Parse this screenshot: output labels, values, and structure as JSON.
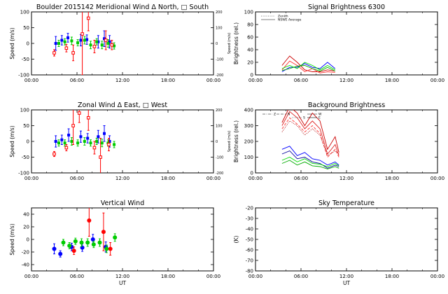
{
  "chart_data": [
    {
      "id": "meridional",
      "type": "scatter",
      "title": "Boulder   2015142     Meridional Wind   Δ North, □ South",
      "ylabel": "Speed (m/s)",
      "ylabel_right": "Speed (m/s)",
      "xlabel": "",
      "xlim": [
        0,
        24
      ],
      "ylim": [
        -100,
        100
      ],
      "yticks": [
        -100,
        -50,
        0,
        50,
        100
      ],
      "ylim_right": [
        -200,
        200
      ],
      "yticks_right": [
        -200,
        -100,
        0,
        100,
        200
      ],
      "xticks": [
        "00:00",
        "06:00",
        "12:00",
        "18:00",
        "00:00"
      ],
      "grid": false,
      "series": [
        {
          "color": "#0000ff",
          "marker": "square",
          "points": [
            [
              3.2,
              0,
              22
            ],
            [
              4.0,
              10,
              15
            ],
            [
              4.8,
              18,
              14
            ],
            [
              6.5,
              10,
              18
            ],
            [
              7.3,
              12,
              15
            ],
            [
              8.8,
              5,
              20
            ],
            [
              9.6,
              15,
              25
            ],
            [
              10.3,
              5,
              20
            ]
          ]
        },
        {
          "color": "#00cc00",
          "marker": "square",
          "points": [
            [
              3.6,
              0,
              10
            ],
            [
              4.4,
              5,
              10
            ],
            [
              5.3,
              8,
              12
            ],
            [
              6.1,
              2,
              10
            ],
            [
              7.0,
              10,
              12
            ],
            [
              7.8,
              -5,
              12
            ],
            [
              8.6,
              5,
              10
            ],
            [
              9.3,
              -5,
              12
            ],
            [
              10.1,
              0,
              12
            ],
            [
              10.9,
              -8,
              10
            ]
          ]
        },
        {
          "color": "#ff0000",
          "marker": "square-open",
          "points": [
            [
              3.0,
              -30,
              10
            ],
            [
              4.6,
              -15,
              12
            ],
            [
              5.5,
              -30,
              25
            ],
            [
              6.7,
              30,
              130
            ],
            [
              7.5,
              80,
              40
            ],
            [
              8.3,
              -10,
              20
            ],
            [
              9.8,
              10,
              30
            ],
            [
              10.6,
              -5,
              15
            ]
          ]
        }
      ]
    },
    {
      "id": "zonal",
      "type": "scatter",
      "title": "Zonal Wind      Δ East, □ West",
      "ylabel": "Speed (m/s)",
      "ylabel_right": "Speed (m/s)",
      "xlabel": "",
      "xlim": [
        0,
        24
      ],
      "ylim": [
        -100,
        100
      ],
      "yticks": [
        -100,
        -50,
        0,
        50,
        100
      ],
      "ylim_right": [
        -200,
        200
      ],
      "yticks_right": [
        -200,
        -100,
        0,
        100,
        200
      ],
      "xticks": [
        "00:00",
        "06:00",
        "12:00",
        "18:00",
        "00:00"
      ],
      "grid": false,
      "series": [
        {
          "color": "#0000ff",
          "marker": "square",
          "points": [
            [
              3.2,
              0,
              18
            ],
            [
              4.0,
              5,
              15
            ],
            [
              4.9,
              20,
              20
            ],
            [
              6.5,
              15,
              18
            ],
            [
              7.4,
              10,
              15
            ],
            [
              8.8,
              15,
              20
            ],
            [
              9.6,
              25,
              25
            ],
            [
              10.3,
              0,
              18
            ]
          ]
        },
        {
          "color": "#00cc00",
          "marker": "square",
          "points": [
            [
              3.6,
              -5,
              10
            ],
            [
              4.4,
              -5,
              10
            ],
            [
              5.3,
              0,
              12
            ],
            [
              6.1,
              -5,
              10
            ],
            [
              7.0,
              0,
              12
            ],
            [
              7.8,
              -5,
              10
            ],
            [
              8.6,
              0,
              10
            ],
            [
              9.3,
              -5,
              12
            ],
            [
              10.1,
              -5,
              10
            ],
            [
              10.9,
              -10,
              10
            ]
          ]
        },
        {
          "color": "#ff0000",
          "marker": "square-open",
          "points": [
            [
              3.0,
              -40,
              8
            ],
            [
              4.6,
              -20,
              10
            ],
            [
              5.5,
              50,
              60
            ],
            [
              6.3,
              90,
              30
            ],
            [
              7.5,
              75,
              40
            ],
            [
              8.3,
              -20,
              20
            ],
            [
              9.1,
              -50,
              60
            ],
            [
              10.2,
              -10,
              20
            ]
          ]
        }
      ]
    },
    {
      "id": "vertical",
      "type": "scatter",
      "title": "Vertical Wind",
      "ylabel": "Speed (m/s)",
      "xlabel": "UT",
      "xlim": [
        0,
        24
      ],
      "ylim": [
        -50,
        50
      ],
      "yticks": [
        -40,
        -20,
        0,
        20,
        40
      ],
      "xticks": [
        "00:00",
        "06:00",
        "12:00",
        "18:00",
        "00:00"
      ],
      "grid": false,
      "series": [
        {
          "color": "#0000ff",
          "marker": "circle",
          "points": [
            [
              3.0,
              -15,
              8
            ],
            [
              3.8,
              -23,
              5
            ],
            [
              5.3,
              -12,
              6
            ],
            [
              6.7,
              -13,
              6
            ],
            [
              8.1,
              0,
              8
            ],
            [
              9.8,
              -12,
              8
            ]
          ]
        },
        {
          "color": "#00cc00",
          "marker": "circle",
          "points": [
            [
              4.2,
              -5,
              5
            ],
            [
              5.0,
              -10,
              5
            ],
            [
              5.8,
              -3,
              5
            ],
            [
              6.6,
              -5,
              6
            ],
            [
              7.4,
              -5,
              6
            ],
            [
              8.2,
              -8,
              5
            ],
            [
              9.0,
              -5,
              6
            ],
            [
              9.9,
              -15,
              6
            ],
            [
              11.0,
              3,
              6
            ]
          ]
        },
        {
          "color": "#ff0000",
          "marker": "circle",
          "points": [
            [
              5.6,
              -18,
              6
            ],
            [
              7.6,
              30,
              25
            ],
            [
              9.5,
              12,
              30
            ],
            [
              10.4,
              -15,
              10
            ]
          ]
        }
      ]
    },
    {
      "id": "signal",
      "type": "line",
      "title": "Signal Brightness        6300",
      "ylabel": "Brightness (rel.)",
      "xlabel": "",
      "xlim": [
        0,
        24
      ],
      "ylim": [
        0,
        100
      ],
      "yticks": [
        0,
        20,
        40,
        60,
        80,
        100
      ],
      "xticks": [
        "00:00",
        "06:00",
        "12:00",
        "18:00",
        "00:00"
      ],
      "legend": {
        "placement": "top-left",
        "entries": [
          {
            "label": "Zenith",
            "style": "dotted"
          },
          {
            "label": "NSWE Average",
            "style": "solid"
          }
        ]
      },
      "series": [
        {
          "color": "#cc0000",
          "style": "solid",
          "points": [
            [
              3.5,
              15
            ],
            [
              4.5,
              30
            ],
            [
              5.5,
              20
            ],
            [
              6.5,
              8
            ],
            [
              7.5,
              5
            ],
            [
              8.5,
              5
            ],
            [
              9.5,
              8
            ],
            [
              10.5,
              6
            ]
          ]
        },
        {
          "color": "#ff3333",
          "style": "solid",
          "points": [
            [
              3.5,
              8
            ],
            [
              4.5,
              22
            ],
            [
              5.5,
              15
            ],
            [
              6.5,
              5
            ],
            [
              7.5,
              10
            ],
            [
              8.5,
              3
            ],
            [
              9.5,
              5
            ],
            [
              10.5,
              4
            ]
          ]
        },
        {
          "color": "#0000ff",
          "style": "solid",
          "points": [
            [
              3.5,
              5
            ],
            [
              4.5,
              12
            ],
            [
              5.5,
              12
            ],
            [
              6.5,
              18
            ],
            [
              7.5,
              12
            ],
            [
              8.5,
              10
            ],
            [
              9.5,
              20
            ],
            [
              10.5,
              10
            ]
          ]
        },
        {
          "color": "#00dd00",
          "style": "solid",
          "points": [
            [
              3.5,
              10
            ],
            [
              4.5,
              15
            ],
            [
              5.5,
              10
            ],
            [
              6.5,
              20
            ],
            [
              7.5,
              15
            ],
            [
              8.5,
              8
            ],
            [
              9.5,
              15
            ],
            [
              10.5,
              8
            ]
          ]
        },
        {
          "color": "#00aa00",
          "style": "solid",
          "points": [
            [
              3.5,
              7
            ],
            [
              4.5,
              10
            ],
            [
              5.5,
              14
            ],
            [
              6.5,
              15
            ],
            [
              7.5,
              10
            ],
            [
              8.5,
              6
            ],
            [
              9.5,
              12
            ],
            [
              10.5,
              6
            ]
          ]
        }
      ]
    },
    {
      "id": "background",
      "type": "line",
      "title": "Background Brightness",
      "ylabel": "Brightness (rel.)",
      "xlabel": "",
      "xlim": [
        0,
        24
      ],
      "ylim": [
        0,
        400
      ],
      "yticks": [
        0,
        100,
        200,
        300,
        400
      ],
      "xticks": [
        "00:00",
        "06:00",
        "12:00",
        "18:00",
        "00:00"
      ],
      "legend": {
        "placement": "top-left",
        "entries": [
          {
            "label": "Z",
            "style": "dash-dot"
          },
          {
            "label": "N",
            "style": "dashed"
          },
          {
            "label": "S",
            "style": "dotted"
          },
          {
            "label": "W",
            "style": "long-dash"
          },
          {
            "label": "E",
            "style": "solid"
          }
        ]
      },
      "series": [
        {
          "color": "#cc0000",
          "style": "solid",
          "points": [
            [
              3.5,
              320
            ],
            [
              4.5,
              420
            ],
            [
              5.5,
              380
            ],
            [
              6.5,
              300
            ],
            [
              7.5,
              380
            ],
            [
              8.5,
              330
            ],
            [
              9.5,
              150
            ],
            [
              10.5,
              230
            ],
            [
              11.0,
              130
            ]
          ]
        },
        {
          "color": "#dd2222",
          "style": "solid",
          "points": [
            [
              3.5,
              300
            ],
            [
              4.5,
              390
            ],
            [
              5.5,
              350
            ],
            [
              6.5,
              280
            ],
            [
              7.5,
              330
            ],
            [
              8.5,
              280
            ],
            [
              9.5,
              120
            ],
            [
              10.5,
              180
            ],
            [
              11.0,
              110
            ]
          ]
        },
        {
          "color": "#ff3333",
          "style": "dashed",
          "points": [
            [
              3.5,
              280
            ],
            [
              4.5,
              350
            ],
            [
              5.5,
              310
            ],
            [
              6.5,
              260
            ],
            [
              7.5,
              300
            ],
            [
              8.5,
              250
            ],
            [
              9.5,
              100
            ],
            [
              10.5,
              150
            ],
            [
              11.0,
              100
            ]
          ]
        },
        {
          "color": "#aa0000",
          "style": "dotted",
          "points": [
            [
              3.5,
              260
            ],
            [
              4.5,
              330
            ],
            [
              5.5,
              300
            ],
            [
              6.5,
              240
            ],
            [
              7.5,
              280
            ],
            [
              8.5,
              240
            ],
            [
              9.5,
              110
            ],
            [
              10.5,
              140
            ],
            [
              11.0,
              120
            ]
          ]
        },
        {
          "color": "#0000ff",
          "style": "solid",
          "points": [
            [
              3.5,
              150
            ],
            [
              4.5,
              170
            ],
            [
              5.5,
              110
            ],
            [
              6.5,
              130
            ],
            [
              7.5,
              90
            ],
            [
              8.5,
              80
            ],
            [
              9.5,
              50
            ],
            [
              10.5,
              70
            ],
            [
              11.0,
              50
            ]
          ]
        },
        {
          "color": "#000099",
          "style": "solid",
          "points": [
            [
              3.5,
              120
            ],
            [
              4.5,
              140
            ],
            [
              5.5,
              90
            ],
            [
              6.5,
              100
            ],
            [
              7.5,
              70
            ],
            [
              8.5,
              60
            ],
            [
              9.5,
              30
            ],
            [
              10.5,
              50
            ],
            [
              11.0,
              40
            ]
          ]
        },
        {
          "color": "#00dd00",
          "style": "solid",
          "points": [
            [
              3.5,
              80
            ],
            [
              4.5,
              100
            ],
            [
              5.5,
              70
            ],
            [
              6.5,
              90
            ],
            [
              7.5,
              60
            ],
            [
              8.5,
              55
            ],
            [
              9.5,
              40
            ],
            [
              10.5,
              60
            ],
            [
              11.0,
              45
            ]
          ]
        },
        {
          "color": "#00aa00",
          "style": "solid",
          "points": [
            [
              3.5,
              60
            ],
            [
              4.5,
              80
            ],
            [
              5.5,
              50
            ],
            [
              6.5,
              70
            ],
            [
              7.5,
              45
            ],
            [
              8.5,
              40
            ],
            [
              9.5,
              25
            ],
            [
              10.5,
              40
            ],
            [
              11.0,
              30
            ]
          ]
        }
      ]
    },
    {
      "id": "skytemp",
      "type": "line",
      "title": "Sky Temperature",
      "ylabel": "(K)",
      "xlabel": "UT",
      "xlim": [
        0,
        24
      ],
      "ylim": [
        -80,
        -20
      ],
      "yticks": [
        -80,
        -70,
        -60,
        -50,
        -40,
        -30,
        -20
      ],
      "xticks": [
        "00:00",
        "06:00",
        "12:00",
        "18:00",
        "00:00"
      ],
      "series": []
    }
  ]
}
